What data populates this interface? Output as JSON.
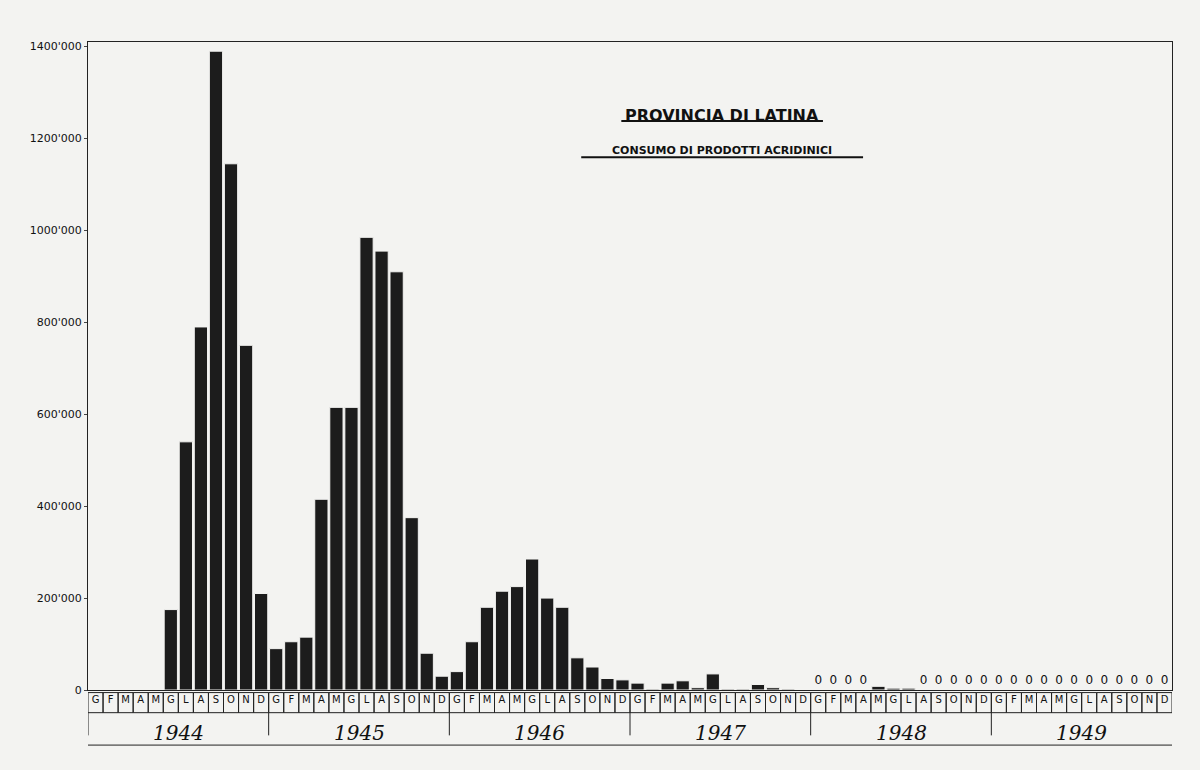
{
  "chart_data": {
    "type": "bar",
    "title": "PROVINCIA DI LATINA",
    "subtitle": "CONSUMO DI PRODOTTI ACRIDINICI",
    "categories": [
      "G",
      "F",
      "M",
      "A",
      "M",
      "G",
      "L",
      "A",
      "S",
      "O",
      "N",
      "D",
      "G",
      "F",
      "M",
      "A",
      "M",
      "G",
      "L",
      "A",
      "S",
      "O",
      "N",
      "D",
      "G",
      "F",
      "M",
      "A",
      "M",
      "G",
      "L",
      "A",
      "S",
      "O",
      "N",
      "D",
      "G",
      "F",
      "M",
      "A",
      "M",
      "G",
      "L",
      "A",
      "S",
      "O",
      "N",
      "D",
      "G",
      "F",
      "M",
      "A",
      "M",
      "G",
      "L",
      "A",
      "S",
      "O",
      "N",
      "D",
      "G",
      "F",
      "M",
      "A",
      "M",
      "G",
      "L",
      "A",
      "S",
      "O",
      "N",
      "D"
    ],
    "groups": [
      "1944",
      "1945",
      "1946",
      "1947",
      "1948",
      "1949"
    ],
    "values": [
      null,
      null,
      null,
      null,
      null,
      175000,
      540000,
      790000,
      1390000,
      1145000,
      750000,
      210000,
      90000,
      105000,
      115000,
      415000,
      615000,
      615000,
      985000,
      955000,
      910000,
      375000,
      80000,
      30000,
      40000,
      105000,
      180000,
      215000,
      225000,
      285000,
      200000,
      180000,
      70000,
      50000,
      25000,
      22000,
      15000,
      2000,
      15000,
      20000,
      5000,
      35000,
      2000,
      2000,
      12000,
      5000,
      2000,
      0,
      0,
      0,
      0,
      0,
      8000,
      4000,
      4000,
      0,
      0,
      0,
      0,
      0,
      0,
      0,
      0,
      0,
      0,
      0,
      0,
      0,
      0,
      0,
      0,
      0
    ],
    "value_labels": [
      null,
      null,
      null,
      null,
      null,
      null,
      null,
      null,
      null,
      null,
      null,
      null,
      null,
      null,
      null,
      null,
      null,
      null,
      null,
      null,
      null,
      null,
      null,
      null,
      null,
      null,
      null,
      null,
      null,
      null,
      null,
      null,
      null,
      null,
      null,
      null,
      null,
      null,
      null,
      null,
      null,
      null,
      null,
      null,
      null,
      null,
      null,
      null,
      "0",
      "0",
      "0",
      "0",
      null,
      null,
      null,
      "0",
      "0",
      "0",
      "0",
      "0",
      "0",
      "0",
      "0",
      "0",
      "0",
      "0",
      "0",
      "0",
      "0",
      "0",
      "0",
      "0"
    ],
    "data_labels": true,
    "color": "#1c1c1c",
    "ylim": [
      0,
      1410000
    ],
    "yticks": [
      0,
      {
        "value": 200000,
        "label": "200'000"
      },
      {
        "value": 400000,
        "label": "400'000"
      },
      {
        "value": 600000,
        "label": "600'000"
      },
      {
        "value": 800000,
        "label": "800'000"
      },
      {
        "value": 1000000,
        "label": "1000'000"
      },
      {
        "value": 1200000,
        "label": "1200'000"
      },
      {
        "value": 1400000,
        "label": "1400'000"
      }
    ],
    "grid": false
  }
}
